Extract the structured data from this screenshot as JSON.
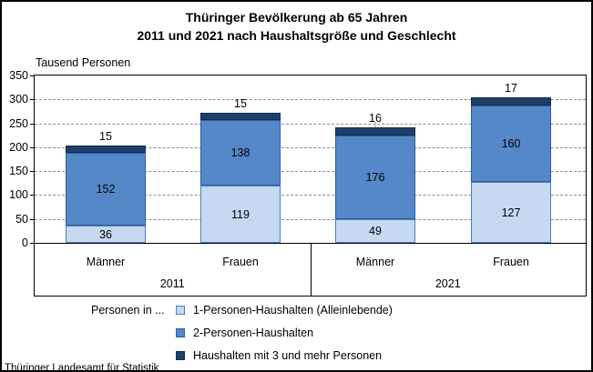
{
  "title": {
    "line1": "Thüringer Bevölkerung ab 65 Jahren",
    "line2": "2011 und 2021 nach Haushaltsgröße und Geschlecht"
  },
  "footer": {
    "source": "Thüringer Landesamt für Statistik"
  },
  "chart_data": {
    "type": "bar",
    "stacked": true,
    "unit_label": "Tausend Personen",
    "ylim": [
      0,
      350
    ],
    "yticks": [
      0,
      50,
      100,
      150,
      200,
      250,
      300,
      350
    ],
    "grid": "horizontal dashed at 50-300",
    "legend_title": "Personen in ...",
    "legend_position": "bottom",
    "groups": [
      "2011",
      "2021"
    ],
    "categories": [
      "Männer",
      "Frauen",
      "Männer",
      "Frauen"
    ],
    "series": [
      {
        "name": "1-Personen-Haushalten (Alleinlebende)",
        "color": "#c6d9f1",
        "border_color": "#4a7ebb",
        "values": [
          36,
          119,
          49,
          127
        ]
      },
      {
        "name": "2-Personen-Haushalten",
        "color": "#5588c8",
        "border_color": "#2e5d9e",
        "values": [
          152,
          138,
          176,
          160
        ]
      },
      {
        "name": "Haushalten mit 3 und mehr Personen",
        "color": "#1f3f6b",
        "border_color": "#142c4e",
        "values": [
          15,
          15,
          16,
          17
        ]
      }
    ]
  }
}
